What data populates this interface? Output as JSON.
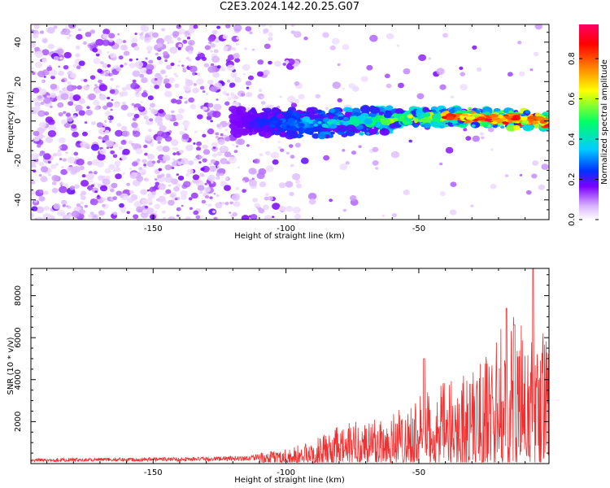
{
  "figure": {
    "title": "C2E3.2024.142.20.25.G07"
  },
  "chart_data": [
    {
      "type": "heatmap",
      "xlabel": "Height of straight line (km)",
      "ylabel": "Frequency (Hz)",
      "xlim": [
        -196,
        -1
      ],
      "ylim": [
        -50,
        49
      ],
      "xticks": [
        -150,
        -100,
        -50
      ],
      "yticks": [
        -40,
        -20,
        0,
        20,
        40
      ],
      "colorbar": {
        "label": "Normalized spectral amplitude",
        "range": [
          0,
          0.97
        ],
        "ticks": [
          0.0,
          0.2,
          0.4,
          0.6,
          0.8
        ],
        "colormap": [
          "#ffffff",
          "#d9b3ff",
          "#7b00ff",
          "#0033ff",
          "#00ccff",
          "#00ff66",
          "#ffff00",
          "#ff8000",
          "#ff0000",
          "#ff0066"
        ]
      },
      "ridge": {
        "description_points": [
          [
            -118,
            0
          ],
          [
            -100,
            -1
          ],
          [
            -80,
            -1
          ],
          [
            -60,
            1
          ],
          [
            -45,
            2
          ],
          [
            -30,
            2
          ],
          [
            -15,
            1
          ],
          [
            -2,
            0
          ]
        ],
        "peak_amplitude_start": 0.25,
        "peak_amplitude_end": 0.95
      }
    },
    {
      "type": "line",
      "xlabel": "Height of straight line (km)",
      "ylabel": "SNR (10 * v/v)",
      "xlim": [
        -196,
        -1
      ],
      "ylim": [
        0,
        9300
      ],
      "xticks": [
        -150,
        -100,
        -50
      ],
      "yticks": [
        2000,
        4000,
        6000,
        8000
      ],
      "series": [
        {
          "color": "#f03030",
          "envelope": [
            [
              -196,
              250
            ],
            [
              -170,
              280
            ],
            [
              -150,
              300
            ],
            [
              -130,
              320
            ],
            [
              -115,
              380
            ],
            [
              -105,
              600
            ],
            [
              -100,
              800
            ],
            [
              -95,
              900
            ],
            [
              -90,
              1100
            ],
            [
              -80,
              1800
            ],
            [
              -70,
              2300
            ],
            [
              -60,
              2600
            ],
            [
              -50,
              3200
            ],
            [
              -40,
              3900
            ],
            [
              -30,
              4600
            ],
            [
              -25,
              5200
            ],
            [
              -20,
              6300
            ],
            [
              -15,
              7500
            ],
            [
              -10,
              6300
            ],
            [
              -5,
              5800
            ],
            [
              -1,
              7200
            ]
          ],
          "peaks": [
            [
              -7,
              9300
            ],
            [
              -17,
              7400
            ],
            [
              -14,
              6600
            ],
            [
              -48,
              5000
            ]
          ]
        }
      ]
    }
  ]
}
